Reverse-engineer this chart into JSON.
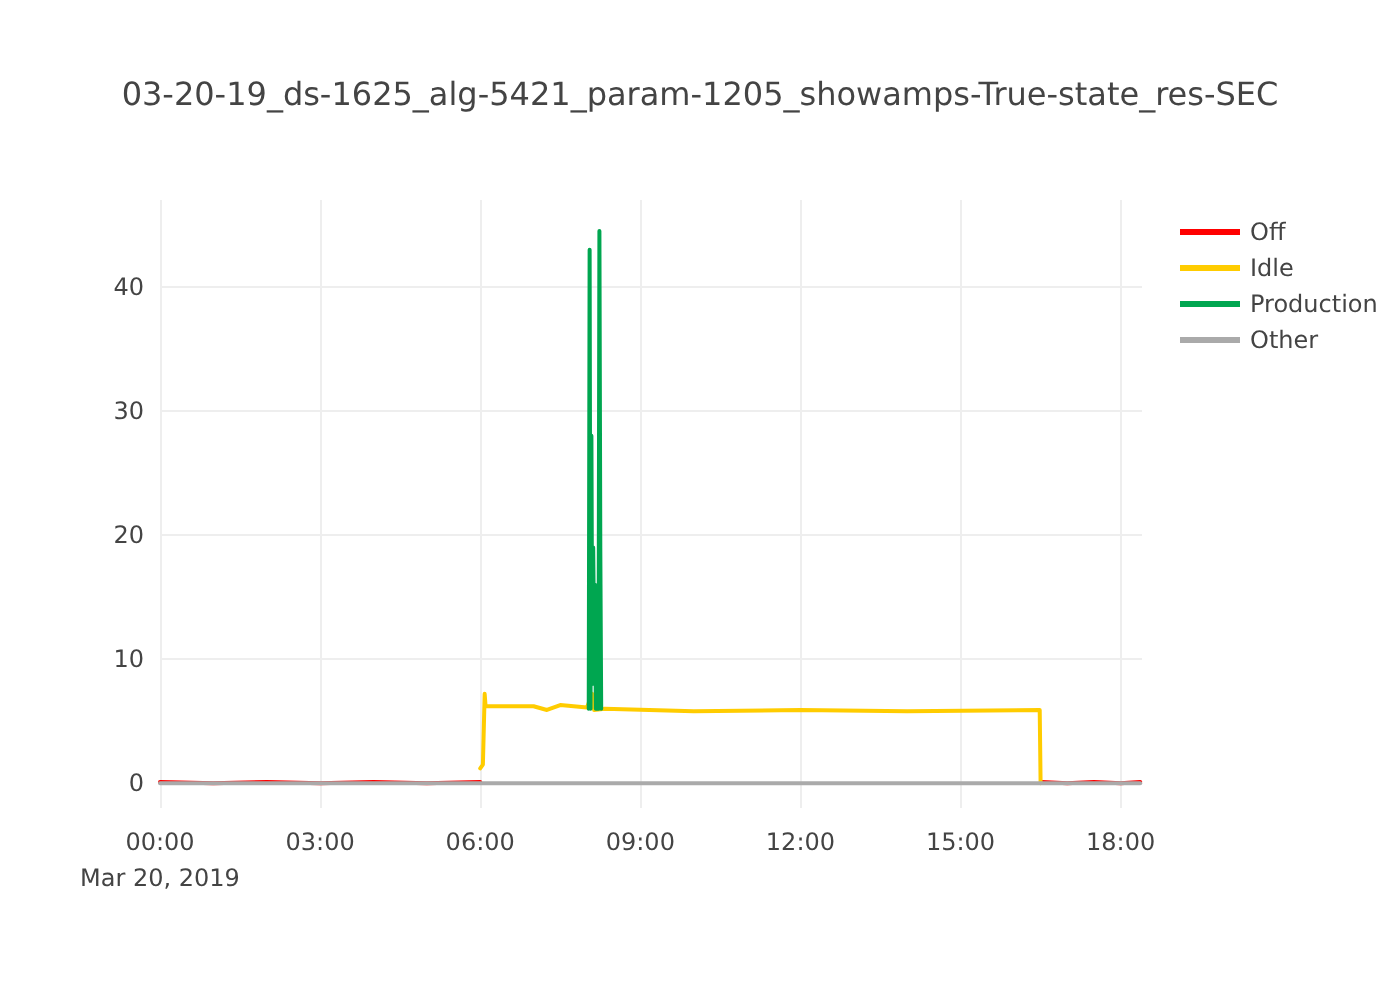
{
  "chart_data": {
    "type": "line",
    "title": "03-20-19_ds-1625_alg-5421_param-1205_showamps-True-state_res-SEC",
    "xlim": [
      "2019-03-20T00:00",
      "2019-03-20T18:24"
    ],
    "xticks": [
      {
        "value": "2019-03-20T00:00",
        "label": "00:00\nMar 20, 2019"
      },
      {
        "value": "2019-03-20T03:00",
        "label": "03:00"
      },
      {
        "value": "2019-03-20T06:00",
        "label": "06:00"
      },
      {
        "value": "2019-03-20T09:00",
        "label": "09:00"
      },
      {
        "value": "2019-03-20T12:00",
        "label": "12:00"
      },
      {
        "value": "2019-03-20T15:00",
        "label": "15:00"
      },
      {
        "value": "2019-03-20T18:00",
        "label": "18:00"
      }
    ],
    "ylim": [
      -2,
      47
    ],
    "yticks": [
      0,
      10,
      20,
      30,
      40
    ],
    "grid": true,
    "legend": "top right",
    "marker": "none",
    "line_style": "solid",
    "series": [
      {
        "name": "Off",
        "color": "#ff0000",
        "x": [
          "2019-03-20T00:00",
          "2019-03-20T01:00",
          "2019-03-20T02:00",
          "2019-03-20T03:00",
          "2019-03-20T04:00",
          "2019-03-20T05:00",
          "2019-03-20T06:00",
          "2019-03-20T06:01",
          "2019-03-20T16:31",
          "2019-03-20T17:00",
          "2019-03-20T17:30",
          "2019-03-20T18:00",
          "2019-03-20T18:22"
        ],
        "values": [
          0.1,
          0,
          0.1,
          0,
          0.1,
          0,
          0.1,
          null,
          0.1,
          0,
          0.1,
          0,
          0.1
        ]
      },
      {
        "name": "Idle",
        "color": "#ffcc00",
        "x": [
          "2019-03-20T06:00",
          "2019-03-20T06:03",
          "2019-03-20T06:05",
          "2019-03-20T06:06",
          "2019-03-20T07:00",
          "2019-03-20T07:15",
          "2019-03-20T07:30",
          "2019-03-20T08:00",
          "2019-03-20T08:06",
          "2019-03-20T08:08",
          "2019-03-20T08:20",
          "2019-03-20T10:00",
          "2019-03-20T12:00",
          "2019-03-20T14:00",
          "2019-03-20T16:29",
          "2019-03-20T16:30"
        ],
        "values": [
          1.2,
          1.5,
          7.2,
          6.2,
          6.2,
          5.9,
          6.3,
          6.1,
          7.2,
          5.9,
          6.0,
          5.8,
          5.9,
          5.8,
          5.9,
          0
        ]
      },
      {
        "name": "Production",
        "color": "#00a650",
        "x": [
          "2019-03-20T08:02",
          "2019-03-20T08:03",
          "2019-03-20T08:04",
          "2019-03-20T08:05",
          "2019-03-20T08:06",
          "2019-03-20T08:07",
          "2019-03-20T08:08",
          "2019-03-20T08:09",
          "2019-03-20T08:10",
          "2019-03-20T08:13",
          "2019-03-20T08:14",
          "2019-03-20T08:15",
          "2019-03-20T08:16"
        ],
        "values": [
          6,
          43,
          6,
          28,
          8,
          19,
          12,
          16,
          6,
          6,
          44.5,
          19,
          6
        ]
      },
      {
        "name": "Other",
        "color": "#aaaaaa",
        "x": [
          "2019-03-20T00:00",
          "2019-03-20T18:22"
        ],
        "values": [
          0,
          0
        ]
      }
    ]
  }
}
